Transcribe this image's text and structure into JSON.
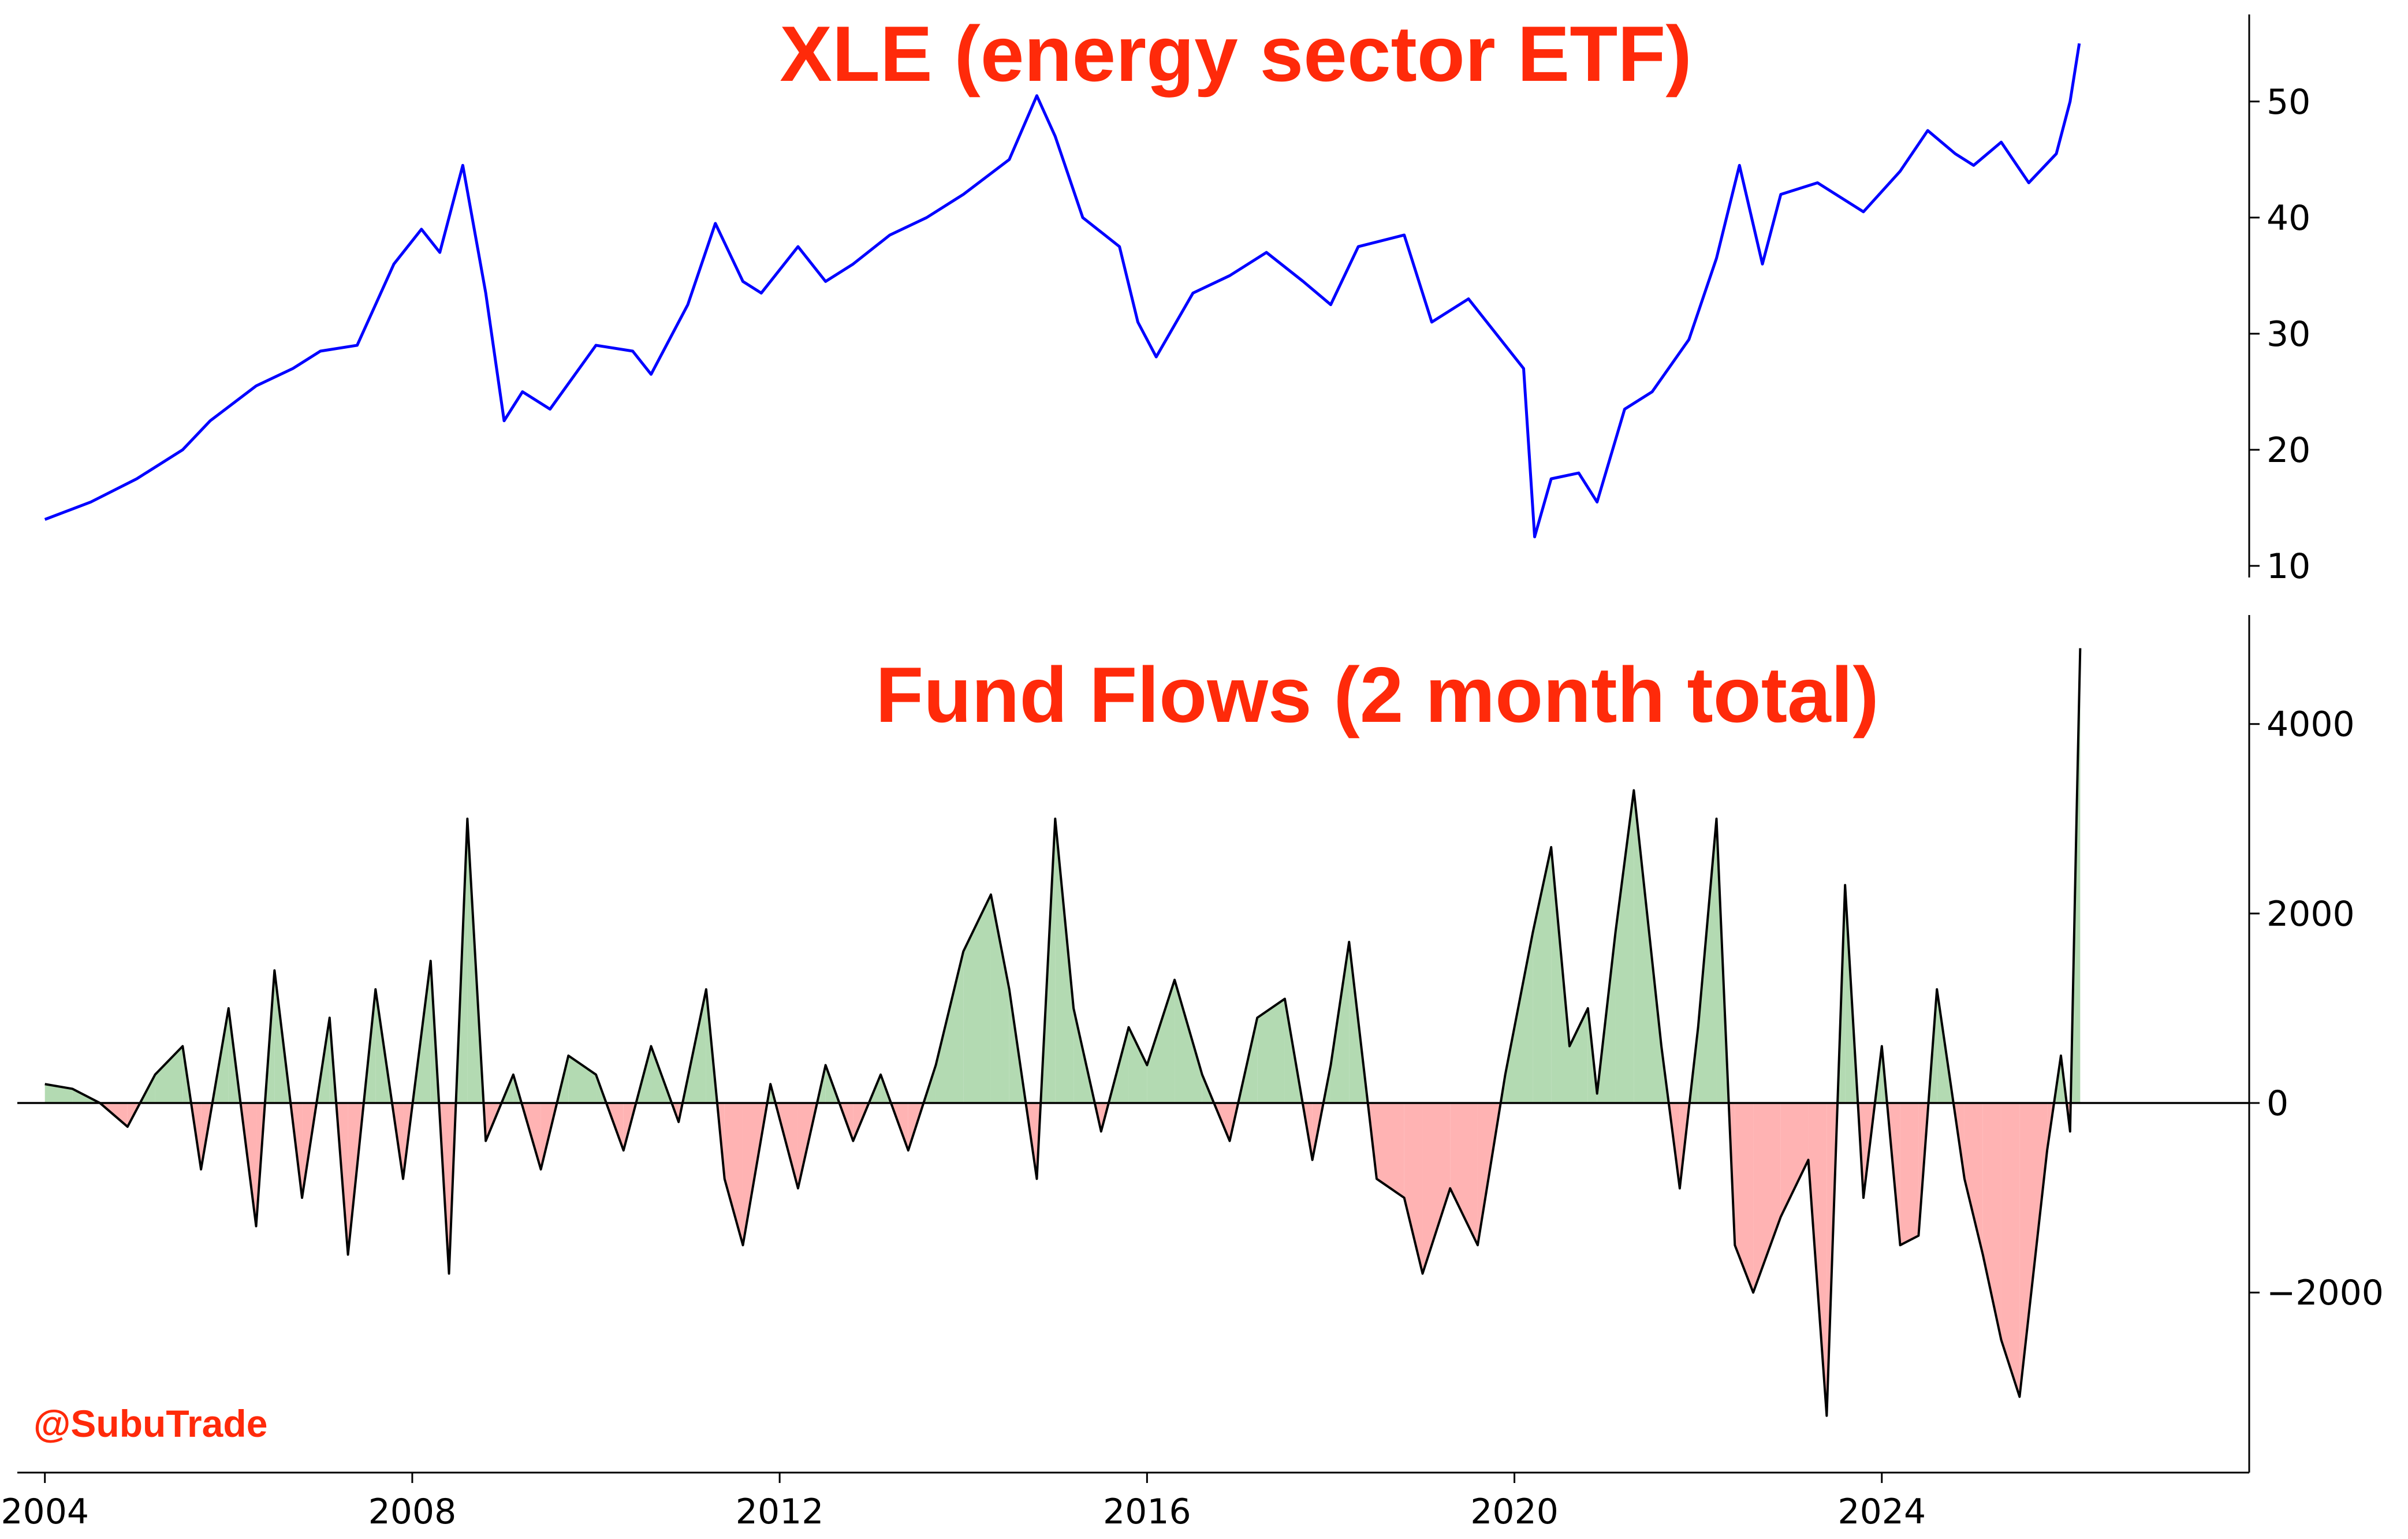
{
  "watermark": "@SubuTrade",
  "colors": {
    "title": "#ff2a0a",
    "price_line": "#0000ff",
    "flow_line": "#000000",
    "positive_fill": "#b3dab2",
    "negative_fill": "#ffb3b3"
  },
  "chart_data": [
    {
      "type": "line",
      "title": "XLE (energy sector ETF)",
      "xlabel": "",
      "ylabel": "",
      "xlim": [
        2003.7,
        2028.0
      ],
      "ylim": [
        9,
        57.5
      ],
      "x_ticks": [
        2004,
        2008,
        2012,
        2016,
        2020,
        2024
      ],
      "y_ticks": [
        10,
        20,
        30,
        40,
        50
      ],
      "y_axis_side": "right",
      "grid": false,
      "series": [
        {
          "color": "#0000ff",
          "x": [
            2004.0,
            2004.5,
            2005.0,
            2005.5,
            2005.8,
            2006.3,
            2006.7,
            2007.0,
            2007.4,
            2007.8,
            2008.1,
            2008.3,
            2008.55,
            2008.8,
            2009.0,
            2009.2,
            2009.5,
            2010.0,
            2010.4,
            2010.6,
            2011.0,
            2011.3,
            2011.6,
            2011.8,
            2012.2,
            2012.5,
            2012.8,
            2013.2,
            2013.6,
            2014.0,
            2014.5,
            2014.8,
            2015.0,
            2015.3,
            2015.7,
            2015.9,
            2016.1,
            2016.5,
            2016.9,
            2017.3,
            2017.7,
            2018.0,
            2018.3,
            2018.8,
            2019.1,
            2019.5,
            2019.9,
            2020.1,
            2020.22,
            2020.4,
            2020.7,
            2020.9,
            2021.2,
            2021.5,
            2021.9,
            2022.2,
            2022.45,
            2022.7,
            2022.9,
            2023.3,
            2023.8,
            2024.2,
            2024.5,
            2024.8,
            2025.0,
            2025.3,
            2025.6,
            2025.9,
            2026.05,
            2026.15
          ],
          "y": [
            14.0,
            15.5,
            17.5,
            20.0,
            22.5,
            25.5,
            27.0,
            28.5,
            29.0,
            36.0,
            39.0,
            37.0,
            44.5,
            33.5,
            22.5,
            25.0,
            23.5,
            29.0,
            28.5,
            26.5,
            32.5,
            39.5,
            34.5,
            33.5,
            37.5,
            34.5,
            36.0,
            38.5,
            40.0,
            42.0,
            45.0,
            50.5,
            47.0,
            40.0,
            37.5,
            31.0,
            28.0,
            33.5,
            35.0,
            37.0,
            34.5,
            32.5,
            37.5,
            38.5,
            31.0,
            33.0,
            29.0,
            27.0,
            12.5,
            17.5,
            18.0,
            15.5,
            23.5,
            25.0,
            29.5,
            36.5,
            44.5,
            36.0,
            42.0,
            43.0,
            40.5,
            44.0,
            47.5,
            45.5,
            44.5,
            46.5,
            43.0,
            45.5,
            50.0,
            55.0
          ]
        }
      ]
    },
    {
      "type": "area",
      "title": "Fund Flows (2 month total)",
      "xlabel": "",
      "ylabel": "",
      "xlim": [
        2003.7,
        2028.0
      ],
      "ylim": [
        -3900,
        5150
      ],
      "x_ticks": [
        2004,
        2008,
        2012,
        2016,
        2020,
        2024
      ],
      "x_tick_labels": [
        "2004",
        "2008",
        "2012",
        "2016",
        "2020",
        "2024"
      ],
      "y_ticks": [
        -2000,
        0,
        2000,
        4000
      ],
      "y_tick_labels": [
        "−2000",
        "0",
        "2000",
        "4000"
      ],
      "y_axis_side": "right",
      "baseline": 0,
      "grid": false,
      "series": [
        {
          "color": "#000000",
          "positive_fill": "#b3dab2",
          "negative_fill": "#ffb3b3",
          "x": [
            2004.0,
            2004.3,
            2004.6,
            2004.9,
            2005.2,
            2005.5,
            2005.7,
            2006.0,
            2006.3,
            2006.5,
            2006.8,
            2007.1,
            2007.3,
            2007.6,
            2007.9,
            2008.2,
            2008.4,
            2008.6,
            2008.8,
            2009.1,
            2009.4,
            2009.7,
            2010.0,
            2010.3,
            2010.6,
            2010.9,
            2011.2,
            2011.4,
            2011.6,
            2011.9,
            2012.2,
            2012.5,
            2012.8,
            2013.1,
            2013.4,
            2013.7,
            2014.0,
            2014.3,
            2014.5,
            2014.8,
            2015.0,
            2015.2,
            2015.5,
            2015.8,
            2016.0,
            2016.3,
            2016.6,
            2016.9,
            2017.2,
            2017.5,
            2017.8,
            2018.0,
            2018.2,
            2018.5,
            2018.8,
            2019.0,
            2019.3,
            2019.6,
            2019.9,
            2020.2,
            2020.4,
            2020.6,
            2020.8,
            2020.9,
            2021.1,
            2021.3,
            2021.6,
            2021.8,
            2022.0,
            2022.2,
            2022.4,
            2022.6,
            2022.9,
            2023.2,
            2023.4,
            2023.6,
            2023.8,
            2024.0,
            2024.2,
            2024.4,
            2024.6,
            2024.9,
            2025.1,
            2025.3,
            2025.5,
            2025.8,
            2025.95,
            2026.05,
            2026.12,
            2026.16
          ],
          "y": [
            200,
            150,
            0,
            -250,
            300,
            600,
            -700,
            1000,
            -1300,
            1400,
            -1000,
            900,
            -1600,
            1200,
            -800,
            1500,
            -1800,
            3000,
            -400,
            300,
            -700,
            500,
            300,
            -500,
            600,
            -200,
            1200,
            -800,
            -1500,
            200,
            -900,
            400,
            -400,
            300,
            -500,
            400,
            1600,
            2200,
            1200,
            -800,
            3000,
            1000,
            -300,
            800,
            400,
            1300,
            300,
            -400,
            900,
            1100,
            -600,
            400,
            1700,
            -800,
            -1000,
            -1800,
            -900,
            -1500,
            300,
            1800,
            2700,
            600,
            1000,
            100,
            1800,
            3300,
            600,
            -900,
            800,
            3000,
            -1500,
            -2000,
            -1200,
            -600,
            -3300,
            2300,
            -1000,
            600,
            -1500,
            -1400,
            1200,
            -800,
            -1600,
            -2500,
            -3100,
            -500,
            500,
            -300,
            3000,
            4800
          ]
        }
      ]
    }
  ]
}
